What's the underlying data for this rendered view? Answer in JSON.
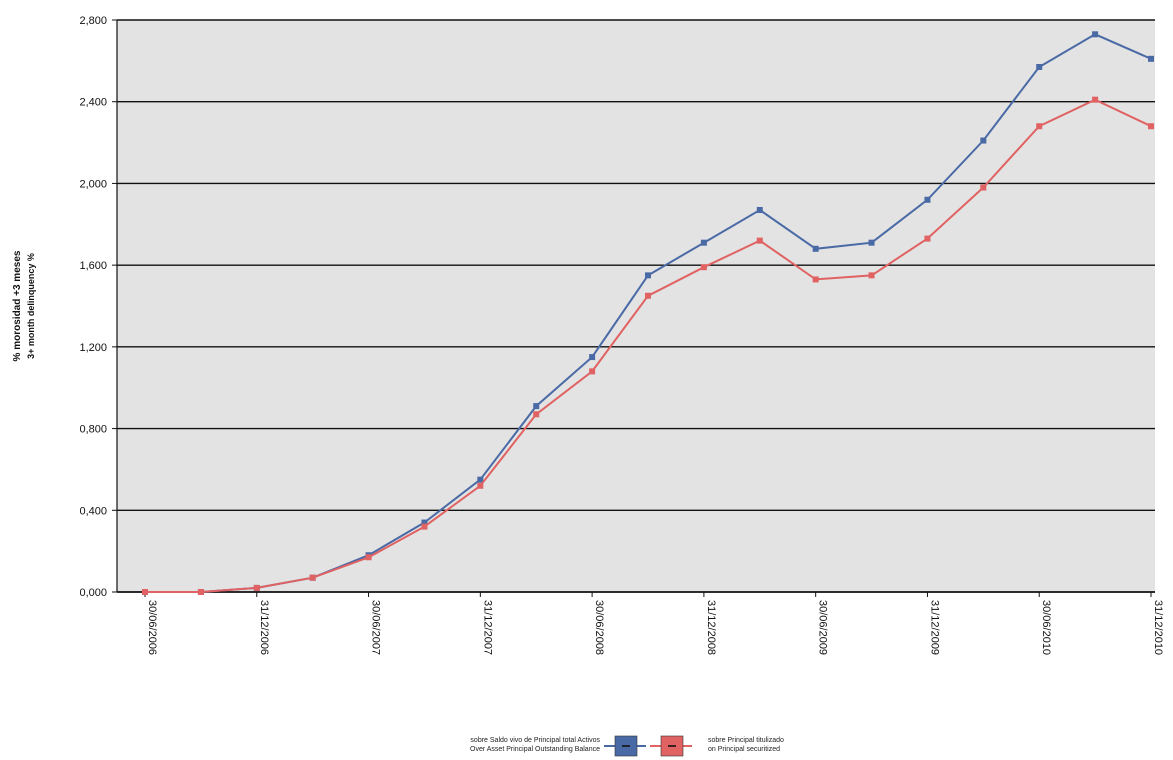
{
  "chart_data": {
    "type": "line",
    "ylabel_line1": "% morosidad +3 meses",
    "ylabel_line2": "3+ month delinquency %",
    "ylim": [
      0,
      2.8
    ],
    "yticks": [
      "0,000",
      "0,400",
      "0,800",
      "1,200",
      "1,600",
      "2,000",
      "2,400",
      "2,800"
    ],
    "ytick_values": [
      0,
      0.4,
      0.8,
      1.2,
      1.6,
      2.0,
      2.4,
      2.8
    ],
    "x": [
      "30/06/2006",
      "30/09/2006",
      "31/12/2006",
      "31/03/2007",
      "30/06/2007",
      "30/09/2007",
      "31/12/2007",
      "31/03/2008",
      "30/06/2008",
      "30/09/2008",
      "31/12/2008",
      "31/03/2009",
      "30/06/2009",
      "30/09/2009",
      "31/12/2009",
      "31/03/2010",
      "30/06/2010",
      "30/09/2010",
      "31/12/2010"
    ],
    "xtick_labels": [
      "30/06/2006",
      "31/12/2006",
      "30/06/2007",
      "31/12/2007",
      "30/06/2008",
      "31/12/2008",
      "30/06/2009",
      "31/12/2009",
      "30/06/2010",
      "31/12/2010"
    ],
    "series": [
      {
        "name": "sobre Saldo vivo de Principal total Activos / over Asset Principal Outstanding Balance",
        "color": "#4a6aa6",
        "values": [
          0.0,
          0.0,
          0.02,
          0.07,
          0.18,
          0.34,
          0.55,
          0.91,
          1.15,
          1.55,
          1.71,
          1.87,
          1.68,
          1.71,
          1.92,
          2.21,
          2.57,
          2.73,
          2.61
        ]
      },
      {
        "name": "sobre Principal titulizado / on Principal securitized",
        "color": "#e06262",
        "values": [
          0.0,
          0.0,
          0.02,
          0.07,
          0.17,
          0.32,
          0.52,
          0.87,
          1.08,
          1.45,
          1.59,
          1.72,
          1.53,
          1.55,
          1.73,
          1.98,
          2.28,
          2.41,
          2.28
        ]
      }
    ],
    "legend": {
      "left_line1": "sobre Saldo vivo de Principal total Activos",
      "left_line2": "Over Asset Principal Outstanding Balance",
      "right_line1": "sobre Principal titulizado",
      "right_line2": "on Principal securitized"
    },
    "plot_background": "#e3e3e3",
    "grid": true,
    "legend_position": "bottom"
  }
}
